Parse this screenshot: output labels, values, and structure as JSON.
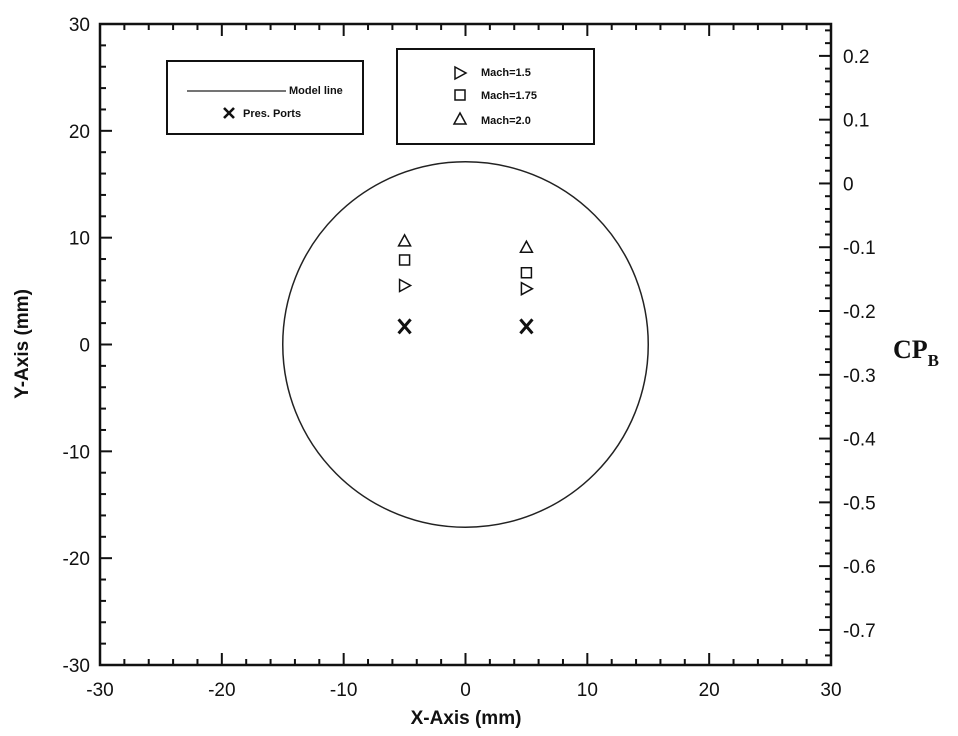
{
  "chart_data": {
    "type": "scatter",
    "title": "",
    "xlabel": "X-Axis (mm)",
    "ylabel": "Y-Axis (mm)",
    "y2label": "CP",
    "y2label_sub": "B",
    "xlim": [
      -30,
      30
    ],
    "ylim": [
      -30,
      30
    ],
    "y2lim": [
      -0.755,
      0.25
    ],
    "x_ticks": [
      "-30",
      "-20",
      "-10",
      "0",
      "10",
      "20",
      "30"
    ],
    "y_ticks": [
      "-30",
      "-20",
      "-10",
      "0",
      "10",
      "20",
      "30"
    ],
    "y2_ticks": [
      "0.2",
      "0.1",
      "0",
      "-0.1",
      "-0.2",
      "-0.3",
      "-0.4",
      "-0.5",
      "-0.6",
      "-0.7"
    ],
    "grid": false,
    "legend_left": {
      "position": "top-left",
      "items": [
        {
          "label": "Model line",
          "marker": "line"
        },
        {
          "label": "Pres. Ports",
          "marker": "x"
        }
      ]
    },
    "legend_right": {
      "position": "top-center",
      "items": [
        {
          "label": "Mach=1.5",
          "marker": "triangle-right"
        },
        {
          "label": "Mach=1.75",
          "marker": "square"
        },
        {
          "label": "Mach=2.0",
          "marker": "triangle-up"
        }
      ]
    },
    "model_outline": {
      "shape": "circle",
      "center": [
        0,
        0
      ],
      "radius": 15
    },
    "pressure_ports": {
      "x": [
        -5,
        5
      ],
      "y": [
        1.7,
        1.7
      ]
    },
    "series": [
      {
        "name": "Mach=1.5",
        "marker": "triangle-right",
        "x": [
          -5,
          5
        ],
        "cp_b": [
          -0.16,
          -0.165
        ]
      },
      {
        "name": "Mach=1.75",
        "marker": "square",
        "x": [
          -5,
          5
        ],
        "cp_b": [
          -0.12,
          -0.14
        ]
      },
      {
        "name": "Mach=2.0",
        "marker": "triangle-up",
        "x": [
          -5,
          5
        ],
        "cp_b": [
          -0.09,
          -0.1
        ]
      }
    ]
  }
}
